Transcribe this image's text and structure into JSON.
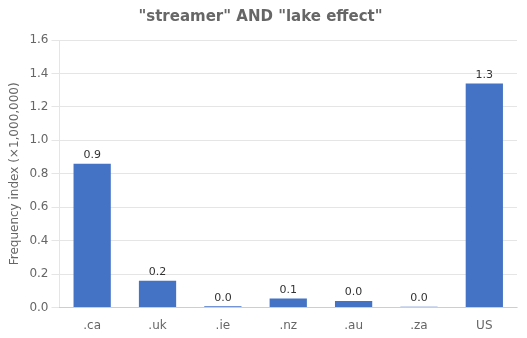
{
  "chart_data": {
    "type": "bar",
    "title": "\"streamer\" AND \"lake effect\"",
    "categories": [
      ".ca",
      ".uk",
      ".ie",
      ".nz",
      ".au",
      ".za",
      "US"
    ],
    "values": [
      0.86,
      0.16,
      0.008,
      0.055,
      0.04,
      0.005,
      1.34
    ],
    "value_labels": [
      "0.9",
      "0.2",
      "0.0",
      "0.1",
      "0.0",
      "0.0",
      "1.3"
    ],
    "data_labels": true,
    "color": "#4472C4",
    "ylabel": "Frequency index (×1,000,000)",
    "ylim": [
      0,
      1.6
    ],
    "yticks": [
      {
        "value": 0,
        "label": "0.0"
      },
      0.2,
      0.4,
      0.6,
      0.8,
      {
        "value": 1,
        "label": "1.0"
      },
      1.2,
      1.4,
      1.6
    ],
    "grid": true
  }
}
